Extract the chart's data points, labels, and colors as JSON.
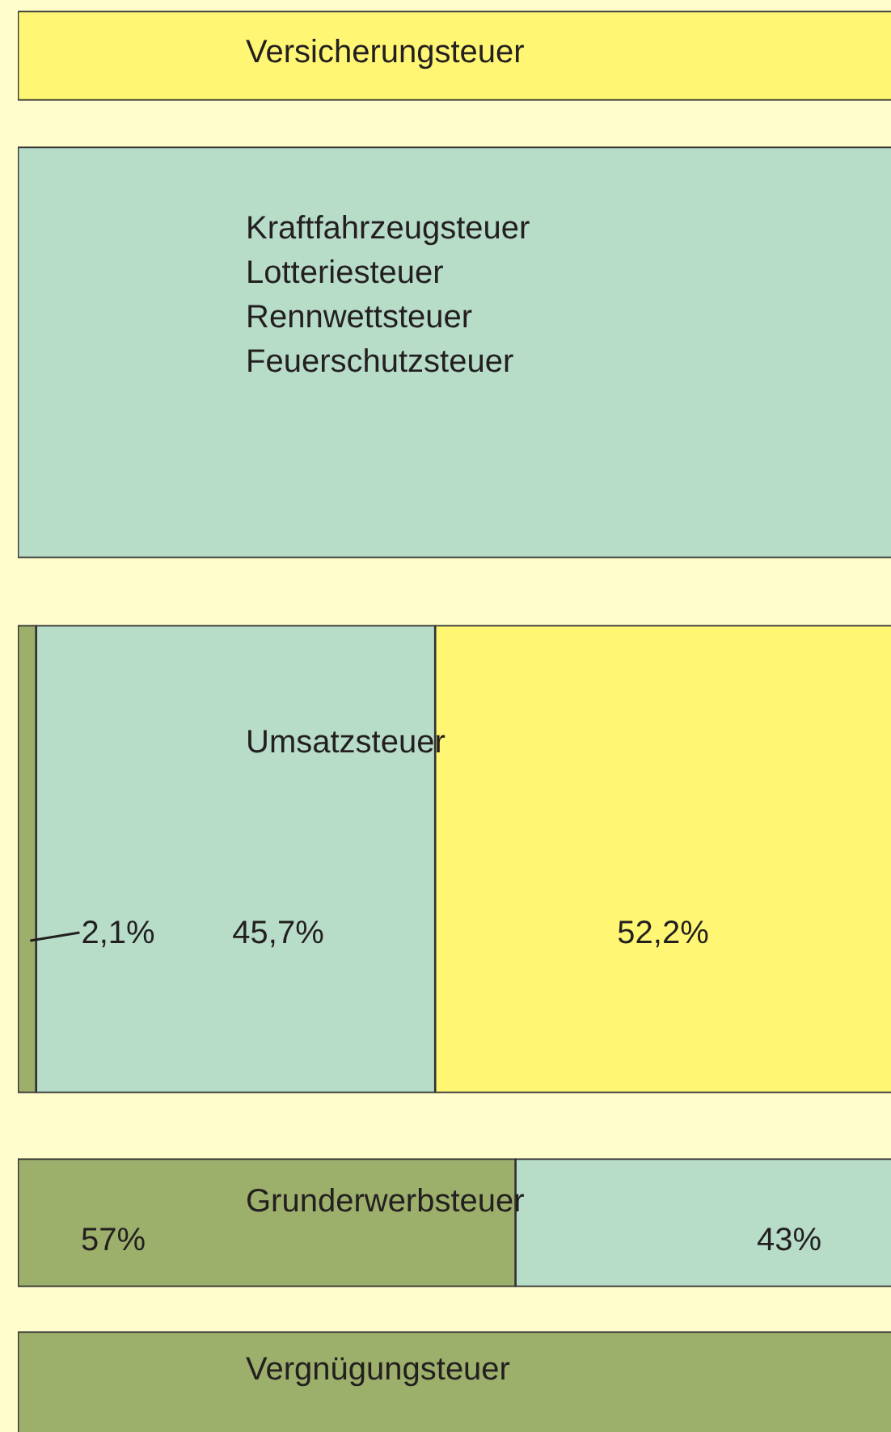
{
  "chart_data": {
    "type": "bar",
    "orientation": "horizontal",
    "stacked": true,
    "categories": [
      "Versicherungsteuer",
      "Kraftfahrzeugsteuer\nLotteriesteuer\nRennwettsteuer\nFeuerschutzsteuer",
      "Umsatzsteuer",
      "Grunderwerbsteuer",
      "Vergnügungsteuer"
    ],
    "series": [
      {
        "color": "#9caf6b",
        "values": [
          null,
          null,
          2.1,
          57,
          100
        ],
        "value_labels": [
          null,
          null,
          "2,1%",
          "57%",
          null
        ]
      },
      {
        "color": "#b7dcc8",
        "values": [
          null,
          100,
          45.7,
          43,
          null
        ],
        "value_labels": [
          null,
          null,
          "45,7%",
          "43%",
          null
        ]
      },
      {
        "color": "#fff774",
        "values": [
          100,
          null,
          52.2,
          null,
          null
        ],
        "value_labels": [
          null,
          null,
          "52,2%",
          null,
          null
        ]
      }
    ],
    "xlim": [
      0,
      100
    ],
    "tick_labels": false
  }
}
